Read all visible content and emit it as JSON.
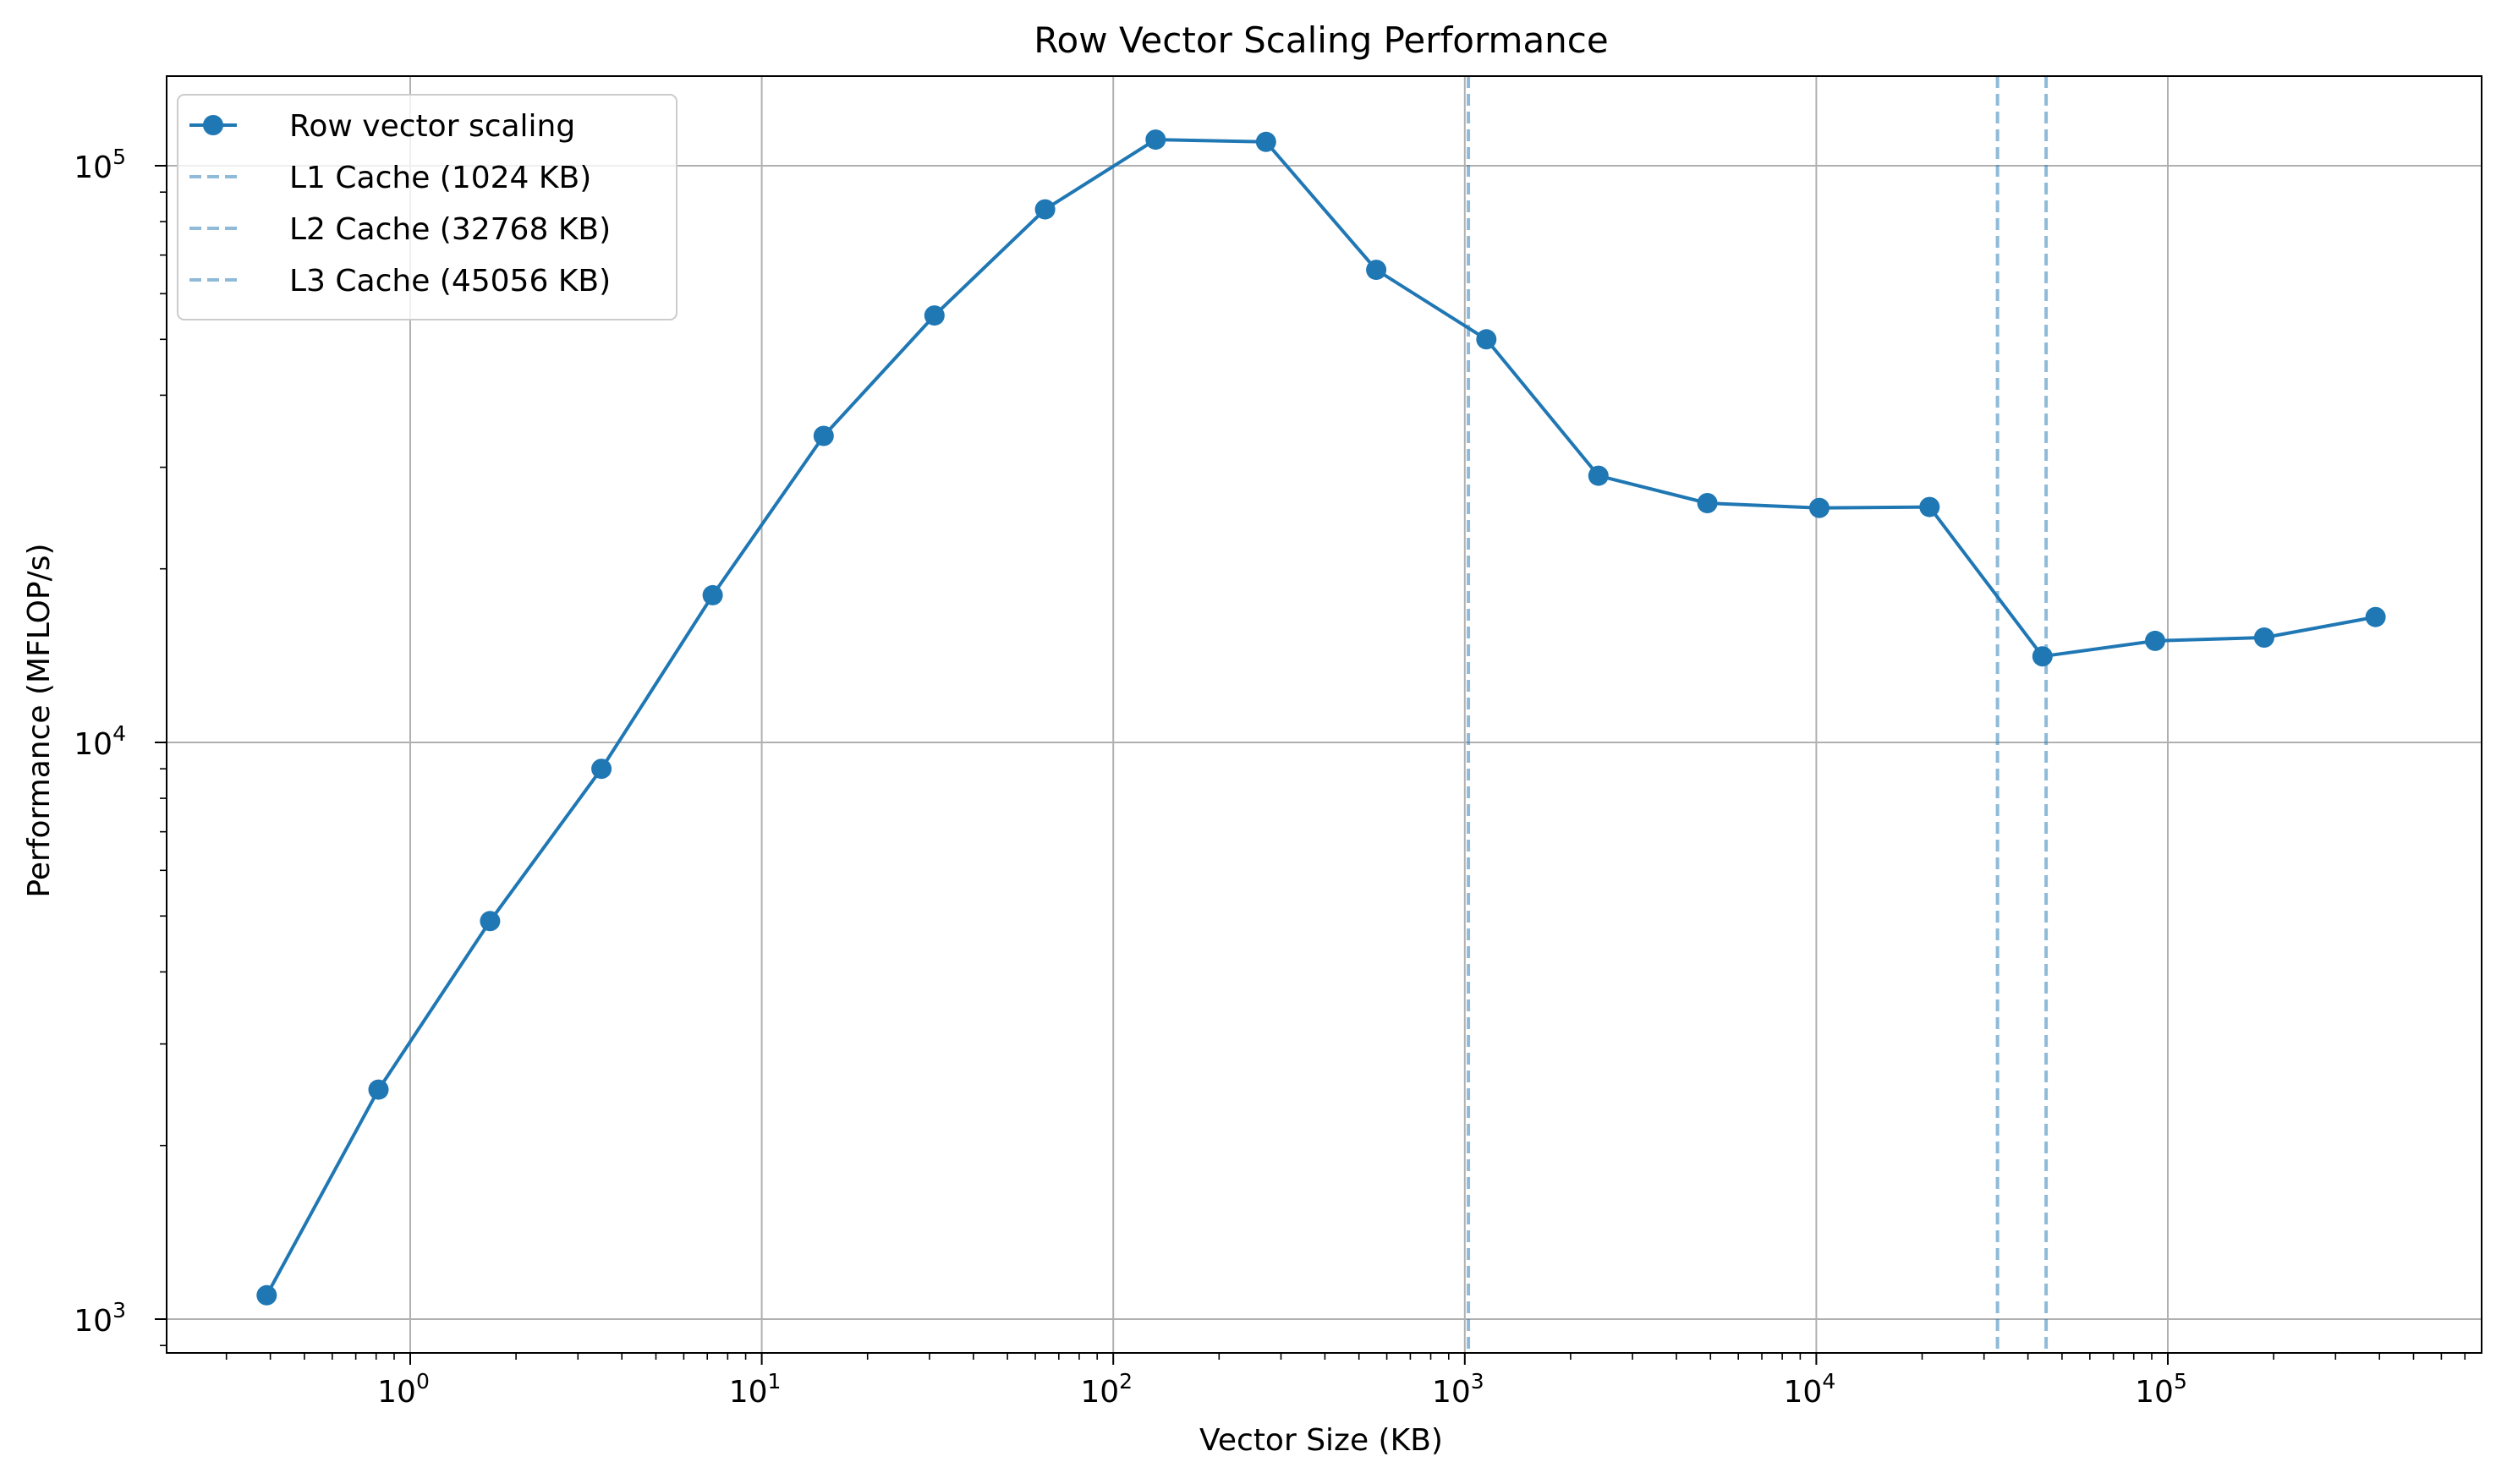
{
  "chart_data": {
    "type": "line",
    "title": "Row Vector Scaling Performance",
    "xlabel": "Vector Size (KB)",
    "ylabel": "Performance (MFLOP/s)",
    "x_scale": "log",
    "y_scale": "log",
    "xlim": [
      0.2,
      700000
    ],
    "ylim": [
      900,
      145000
    ],
    "grid": true,
    "legend_position": "top-left",
    "x_ticks": [
      {
        "value": 1,
        "base": "10",
        "exp": "0"
      },
      {
        "value": 10,
        "base": "10",
        "exp": "1"
      },
      {
        "value": 100,
        "base": "10",
        "exp": "2"
      },
      {
        "value": 1000,
        "base": "10",
        "exp": "3"
      },
      {
        "value": 10000,
        "base": "10",
        "exp": "4"
      },
      {
        "value": 100000,
        "base": "10",
        "exp": "5"
      }
    ],
    "y_ticks": [
      {
        "value": 1000,
        "base": "10",
        "exp": "3"
      },
      {
        "value": 10000,
        "base": "10",
        "exp": "4"
      },
      {
        "value": 100000,
        "base": "10",
        "exp": "5"
      }
    ],
    "series": [
      {
        "name": "Row vector scaling",
        "color": "#1f77b4",
        "marker": "circle",
        "x": [
          0.390625,
          0.8125,
          1.6875,
          3.5,
          7.25,
          15,
          31,
          64,
          132,
          272,
          560,
          1152,
          2400,
          4900,
          10200,
          21000,
          44000,
          92000,
          188000,
          390000
        ],
        "y": [
          1100,
          2500,
          4900,
          9000,
          18000,
          34000,
          55000,
          84000,
          111000,
          110000,
          66000,
          50000,
          29000,
          26000,
          25500,
          25600,
          14100,
          15000,
          15200,
          16500
        ]
      }
    ],
    "reference_lines": [
      {
        "name": "L1 Cache (1024 KB)",
        "x": 1024,
        "color": "#1f77b4",
        "opacity": 0.5,
        "style": "dashed"
      },
      {
        "name": "L2 Cache (32768 KB)",
        "x": 32768,
        "color": "#1f77b4",
        "opacity": 0.5,
        "style": "dashed"
      },
      {
        "name": "L3 Cache (45056 KB)",
        "x": 45056,
        "color": "#1f77b4",
        "opacity": 0.5,
        "style": "dashed"
      }
    ]
  }
}
